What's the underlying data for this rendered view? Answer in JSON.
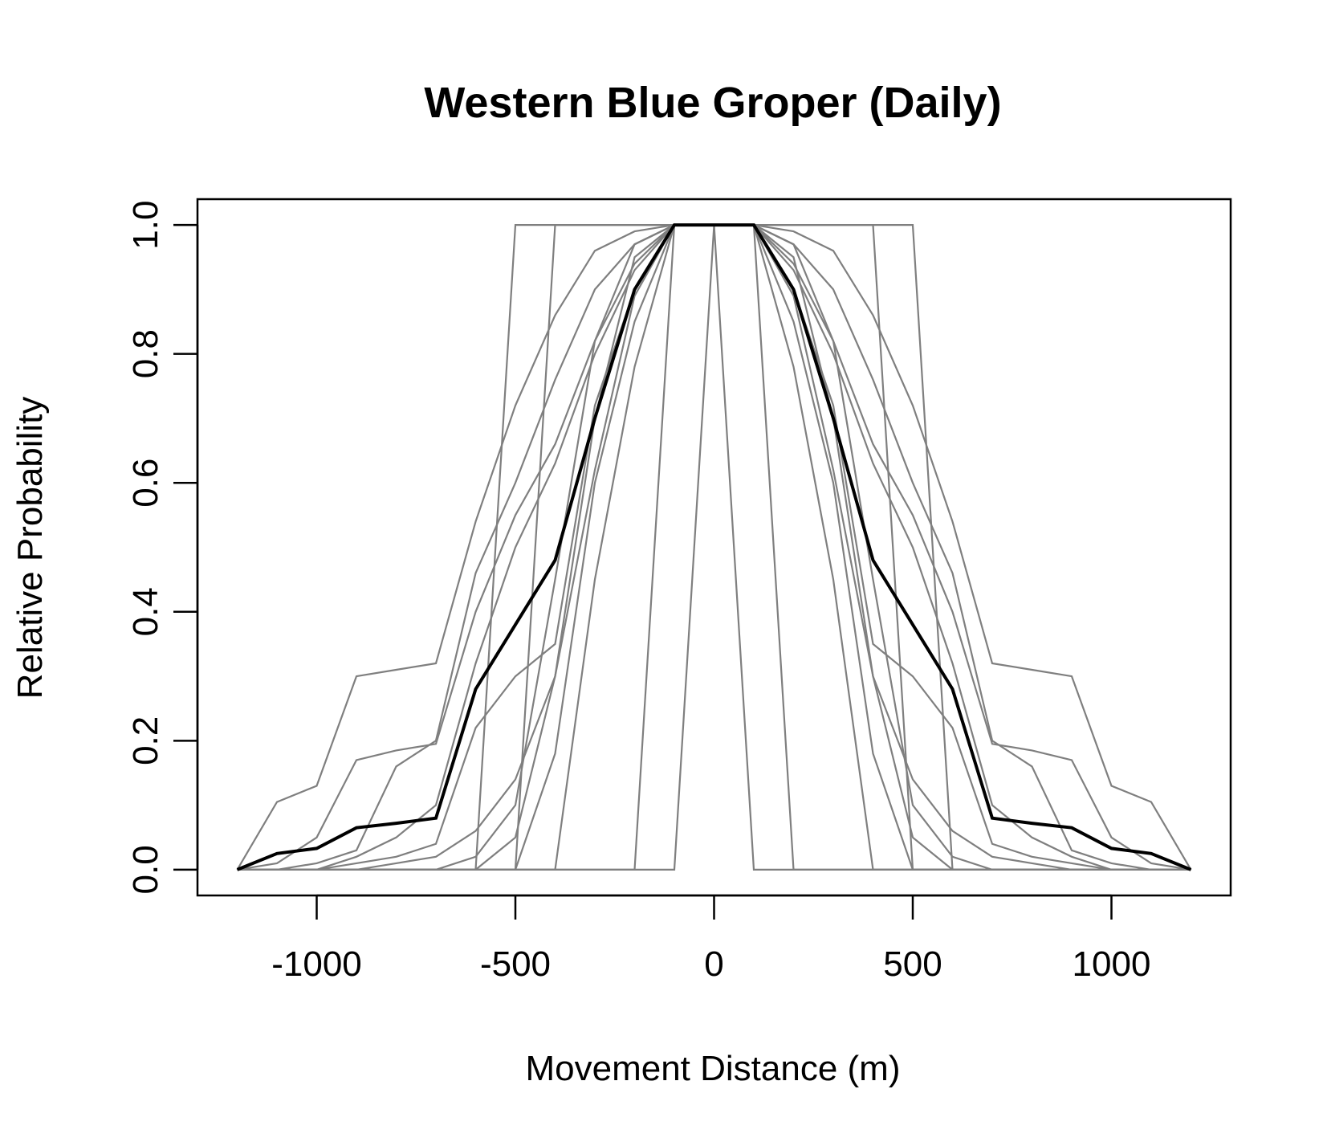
{
  "chart_data": {
    "type": "line",
    "title": "Western Blue Groper (Daily)",
    "xlabel": "Movement Distance (m)",
    "ylabel": "Relative Probability",
    "xlim": [
      -1300,
      1300
    ],
    "ylim": [
      -0.04,
      1.04
    ],
    "xticks": [
      -1000,
      -500,
      0,
      500,
      1000
    ],
    "yticks": [
      0.0,
      0.2,
      0.4,
      0.6,
      0.8,
      1.0
    ],
    "xtick_labels": [
      "-1000",
      "-500",
      "0",
      "500",
      "1000"
    ],
    "ytick_labels": [
      "0.0",
      "0.2",
      "0.4",
      "0.6",
      "0.8",
      "1.0"
    ],
    "x": [
      -1200,
      -1100,
      -1000,
      -900,
      -800,
      -700,
      -600,
      -500,
      -400,
      -300,
      -200,
      -100,
      0,
      100,
      200,
      300,
      400,
      500,
      600,
      700,
      800,
      900,
      1000,
      1100,
      1200
    ],
    "grey_color": "#7f7f7f",
    "mean_color": "#000000",
    "series_half": [
      [
        0,
        0,
        0,
        0,
        0,
        0,
        0,
        0,
        1,
        1,
        1,
        1,
        1
      ],
      [
        0,
        0,
        0,
        0,
        0,
        0,
        0,
        1,
        1,
        1,
        1,
        1,
        1
      ],
      [
        0,
        0,
        0,
        0,
        0,
        0,
        0,
        0,
        0,
        0,
        0,
        0,
        1
      ],
      [
        0,
        0,
        0,
        0,
        0,
        0,
        0,
        0,
        0,
        0,
        0,
        1,
        1
      ],
      [
        0,
        0.105,
        0.13,
        0.3,
        0.31,
        0.32,
        0.54,
        0.72,
        0.86,
        0.96,
        0.99,
        1,
        1
      ],
      [
        0,
        0.01,
        0.05,
        0.17,
        0.185,
        0.195,
        0.4,
        0.55,
        0.66,
        0.82,
        0.94,
        1,
        1
      ],
      [
        0,
        0,
        0.01,
        0.03,
        0.16,
        0.2,
        0.46,
        0.6,
        0.76,
        0.9,
        0.97,
        1,
        1
      ],
      [
        0,
        0,
        0,
        0.02,
        0.05,
        0.1,
        0.32,
        0.5,
        0.63,
        0.8,
        0.93,
        1,
        1
      ],
      [
        0,
        0,
        0,
        0.01,
        0.02,
        0.04,
        0.22,
        0.3,
        0.35,
        0.72,
        0.9,
        1,
        1
      ],
      [
        0,
        0,
        0,
        0,
        0.01,
        0.02,
        0.06,
        0.14,
        0.3,
        0.7,
        0.95,
        1,
        1
      ],
      [
        0,
        0,
        0,
        0,
        0,
        0,
        0.02,
        0.1,
        0.45,
        0.82,
        0.97,
        1,
        1
      ],
      [
        0,
        0,
        0,
        0,
        0,
        0,
        0,
        0.05,
        0.3,
        0.62,
        0.89,
        1,
        1
      ],
      [
        0,
        0,
        0,
        0,
        0,
        0,
        0,
        0,
        0.18,
        0.6,
        0.85,
        1,
        1
      ],
      [
        0,
        0,
        0,
        0,
        0,
        0,
        0,
        0,
        0,
        0.45,
        0.78,
        1,
        1
      ]
    ],
    "mean_half": [
      0,
      0.025,
      0.033,
      0.065,
      0.072,
      0.08,
      0.28,
      0.38,
      0.48,
      0.7,
      0.9,
      1,
      1
    ]
  }
}
